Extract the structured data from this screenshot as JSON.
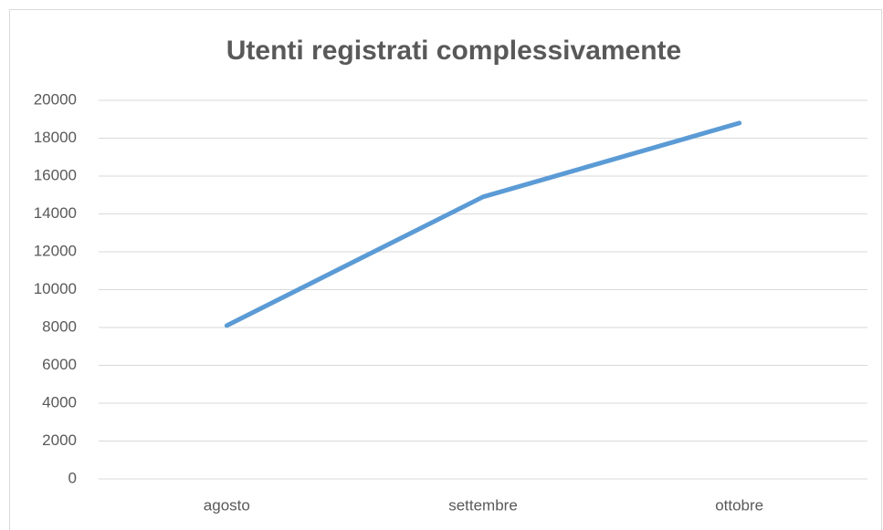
{
  "chart_data": {
    "type": "line",
    "title": "Utenti registrati complessivamente",
    "categories": [
      "agosto",
      "settembre",
      "ottobre"
    ],
    "series": [
      {
        "color": "#5b9bd5",
        "values": [
          8100,
          14900,
          18800
        ]
      }
    ],
    "ylim": [
      0,
      20000
    ],
    "yticks": [
      0,
      2000,
      4000,
      6000,
      8000,
      10000,
      12000,
      14000,
      16000,
      18000,
      20000
    ],
    "grid": true
  }
}
